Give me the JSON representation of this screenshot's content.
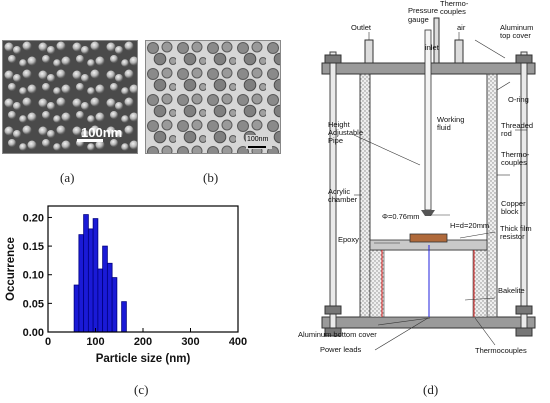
{
  "figure": {
    "panel_a": {
      "caption": "(a)",
      "scale_text": "100nm"
    },
    "panel_b": {
      "caption": "(b)",
      "scale_text": "100nm"
    },
    "panel_c": {
      "caption": "(c)"
    },
    "panel_d": {
      "caption": "(d)",
      "labels": {
        "outlet": "Outlet",
        "pressure_gauge_1": "Pressure",
        "pressure_gauge_2": "gauge",
        "thermocouples_top_1": "Thermo-",
        "thermocouples_top_2": "couples",
        "inlet": "inlet",
        "air": "air",
        "aluminum_top_1": "Aluminum",
        "aluminum_top_2": "top cover",
        "o_ring": "O-ring",
        "threaded_rod_1": "Threaded",
        "threaded_rod_2": "rod",
        "thermocouples_side_1": "Thermo-",
        "thermocouples_side_2": "couples",
        "height_pipe_1": "Height",
        "height_pipe_2": "Adjustable",
        "height_pipe_3": "Pipe",
        "working_fluid_1": "Working",
        "working_fluid_2": "fluid",
        "acrylic_1": "Acrylic",
        "acrylic_2": "chamber",
        "phi": "Φ=0.76mm",
        "h": "H=d=20mm",
        "copper_1": "Copper",
        "copper_2": "block",
        "thick_film_1": "Thick film",
        "thick_film_2": "resistor",
        "epoxy": "Epoxy",
        "bakelite": "Bakelite",
        "aluminum_bottom": "Aluminum bottom cover",
        "thermocouples_bottom": "Thermocouples",
        "power_leads": "Power leads"
      }
    }
  },
  "chart_data": {
    "type": "bar",
    "xlabel": "Particle size (nm)",
    "ylabel": "Occurrence",
    "xlim": [
      0,
      400
    ],
    "ylim": [
      0,
      0.22
    ],
    "xticks": [
      0,
      100,
      200,
      300,
      400
    ],
    "yticks": [
      0.0,
      0.05,
      0.1,
      0.15,
      0.2
    ],
    "ytick_labels": [
      "0.00",
      "0.05",
      "0.10",
      "0.15",
      "0.20"
    ],
    "bin_width": 10,
    "x": [
      60,
      70,
      80,
      90,
      100,
      110,
      120,
      130,
      140,
      150,
      160
    ],
    "values": [
      0.082,
      0.17,
      0.205,
      0.18,
      0.198,
      0.11,
      0.15,
      0.12,
      0.095,
      0,
      0.053
    ],
    "bar_color": "#1a1ad6",
    "bar_edge": "#000080"
  }
}
